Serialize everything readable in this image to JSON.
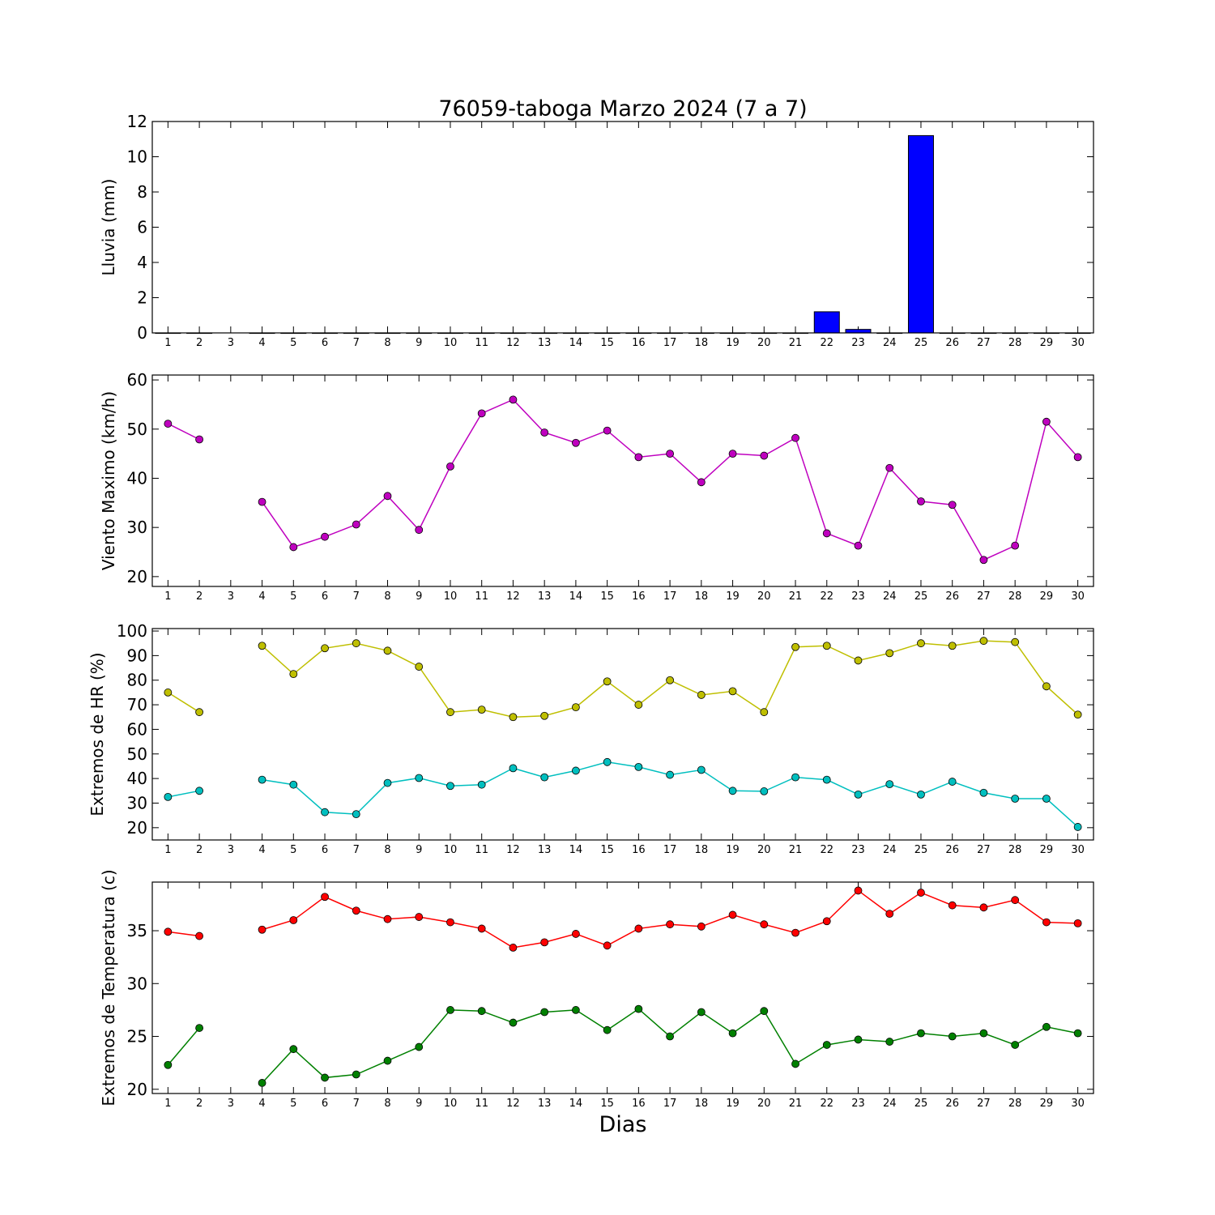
{
  "title": "76059-taboga Marzo 2024  (7 a 7)",
  "xlabel": "Dias",
  "x_ticks": [
    1,
    2,
    3,
    4,
    5,
    6,
    7,
    8,
    9,
    10,
    11,
    12,
    13,
    14,
    15,
    16,
    17,
    18,
    19,
    20,
    21,
    22,
    23,
    24,
    25,
    26,
    27,
    28,
    29,
    30
  ],
  "chart_data": [
    {
      "type": "bar",
      "ylabel": "Lluvia (mm)",
      "ylim": [
        0,
        12
      ],
      "yticks": [
        0,
        2,
        4,
        6,
        8,
        10,
        12
      ],
      "xlim": [
        0.5,
        30.5
      ],
      "categories": [
        1,
        2,
        3,
        4,
        5,
        6,
        7,
        8,
        9,
        10,
        11,
        12,
        13,
        14,
        15,
        16,
        17,
        18,
        19,
        20,
        21,
        22,
        23,
        24,
        25,
        26,
        27,
        28,
        29,
        30
      ],
      "series": [
        {
          "color": "#0000ff",
          "values": [
            0,
            0,
            null,
            0,
            0,
            0,
            0,
            0,
            0,
            0,
            0,
            0,
            0,
            0,
            0,
            0,
            0,
            0,
            0,
            0,
            0,
            1.2,
            0.2,
            0,
            11.2,
            0,
            0,
            0,
            0,
            0
          ]
        }
      ],
      "grid": false
    },
    {
      "type": "line",
      "ylabel": "Viento Maximo (km/h)",
      "ylim": [
        18,
        61
      ],
      "yticks": [
        20,
        30,
        40,
        50,
        60
      ],
      "xlim": [
        0.5,
        30.5
      ],
      "x": [
        1,
        2,
        3,
        4,
        5,
        6,
        7,
        8,
        9,
        10,
        11,
        12,
        13,
        14,
        15,
        16,
        17,
        18,
        19,
        20,
        21,
        22,
        23,
        24,
        25,
        26,
        27,
        28,
        29,
        30
      ],
      "series": [
        {
          "color": "#bf00bf",
          "values": [
            51.1,
            47.9,
            null,
            35.2,
            26.0,
            28.1,
            30.6,
            36.4,
            29.5,
            42.4,
            53.2,
            56.0,
            49.3,
            47.2,
            49.7,
            44.3,
            45.0,
            39.2,
            45.0,
            44.6,
            48.2,
            28.8,
            26.3,
            42.1,
            35.3,
            34.6,
            23.4,
            26.3,
            51.5,
            44.3
          ]
        }
      ],
      "grid": false
    },
    {
      "type": "line",
      "ylabel": "Extremos de HR (%)",
      "ylim": [
        15,
        101
      ],
      "yticks": [
        20,
        30,
        40,
        50,
        60,
        70,
        80,
        90,
        100
      ],
      "xlim": [
        0.5,
        30.5
      ],
      "x": [
        1,
        2,
        3,
        4,
        5,
        6,
        7,
        8,
        9,
        10,
        11,
        12,
        13,
        14,
        15,
        16,
        17,
        18,
        19,
        20,
        21,
        22,
        23,
        24,
        25,
        26,
        27,
        28,
        29,
        30
      ],
      "series": [
        {
          "color": "#bfbf00",
          "values": [
            75,
            67,
            null,
            94,
            82.5,
            93,
            95,
            92,
            85.5,
            67,
            68,
            65,
            65.5,
            69,
            79.5,
            70,
            80,
            74,
            75.5,
            67,
            93.5,
            94,
            88,
            91,
            95,
            94,
            96,
            95.5,
            77.5,
            66
          ]
        },
        {
          "color": "#00bfbf",
          "values": [
            32.5,
            35,
            null,
            39.5,
            37.5,
            26.3,
            25.5,
            38.2,
            40.2,
            37,
            37.5,
            44.2,
            40.5,
            43.2,
            46.7,
            44.7,
            41.5,
            43.5,
            35,
            34.8,
            40.5,
            39.5,
            33.5,
            37.7,
            33.5,
            38.7,
            34.2,
            31.8,
            31.8,
            20.3
          ]
        }
      ],
      "grid": false
    },
    {
      "type": "line",
      "ylabel": "Extremos de Temperatura (c)",
      "ylim": [
        19.6,
        39.6
      ],
      "yticks": [
        20,
        25,
        30,
        35
      ],
      "xlim": [
        0.5,
        30.5
      ],
      "x": [
        1,
        2,
        3,
        4,
        5,
        6,
        7,
        8,
        9,
        10,
        11,
        12,
        13,
        14,
        15,
        16,
        17,
        18,
        19,
        20,
        21,
        22,
        23,
        24,
        25,
        26,
        27,
        28,
        29,
        30
      ],
      "series": [
        {
          "color": "#ff0000",
          "values": [
            34.9,
            34.5,
            null,
            35.1,
            36.0,
            38.2,
            36.9,
            36.1,
            36.3,
            35.8,
            35.2,
            33.4,
            33.9,
            34.7,
            33.6,
            35.2,
            35.6,
            35.4,
            36.5,
            35.6,
            34.8,
            35.9,
            38.8,
            36.6,
            38.6,
            37.4,
            37.2,
            37.9,
            35.8,
            35.7
          ]
        },
        {
          "color": "#008000",
          "values": [
            22.3,
            25.8,
            null,
            20.6,
            23.8,
            21.1,
            21.4,
            22.7,
            24.0,
            27.5,
            27.4,
            26.3,
            27.3,
            27.5,
            25.6,
            27.6,
            25.0,
            27.3,
            25.3,
            27.4,
            22.4,
            24.2,
            24.7,
            24.5,
            25.3,
            25.0,
            25.3,
            24.2,
            25.9,
            25.3
          ]
        }
      ],
      "grid": false
    }
  ]
}
